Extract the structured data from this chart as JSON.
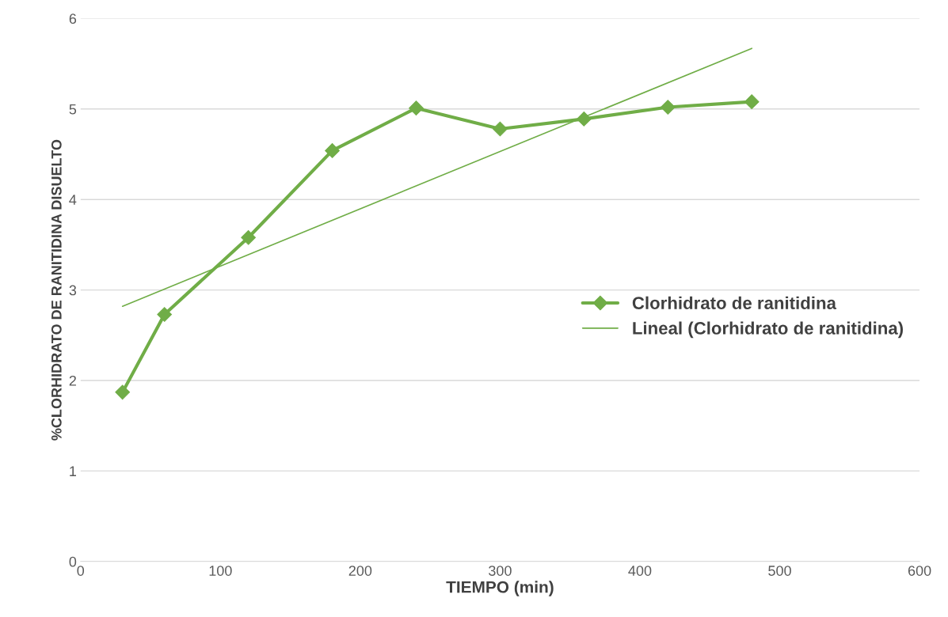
{
  "chart_data": {
    "type": "line",
    "xlabel": "TIEMPO (min)",
    "ylabel": "%CLORHIDRATO DE RANITIDINA DISUELTO",
    "series": [
      {
        "name": "Clorhidrato de ranitidina",
        "color": "#70ad47",
        "marker": "diamond",
        "x": [
          30,
          60,
          120,
          180,
          240,
          300,
          360,
          420,
          480
        ],
        "values": [
          1.87,
          2.73,
          3.58,
          4.54,
          5.01,
          4.78,
          4.89,
          5.02,
          5.08
        ]
      },
      {
        "name": "Lineal (Clorhidrato de ranitidina)",
        "color": "#70ad47",
        "x": [
          30,
          480
        ],
        "values": [
          2.82,
          5.67
        ]
      }
    ],
    "xlim": [
      0,
      600
    ],
    "xticks": [
      0,
      100,
      200,
      300,
      400,
      500,
      600
    ],
    "ylim": [
      0,
      6
    ],
    "yticks": [
      0,
      1,
      2,
      3,
      4,
      5,
      6
    ],
    "grid": "y",
    "legend": "right"
  }
}
